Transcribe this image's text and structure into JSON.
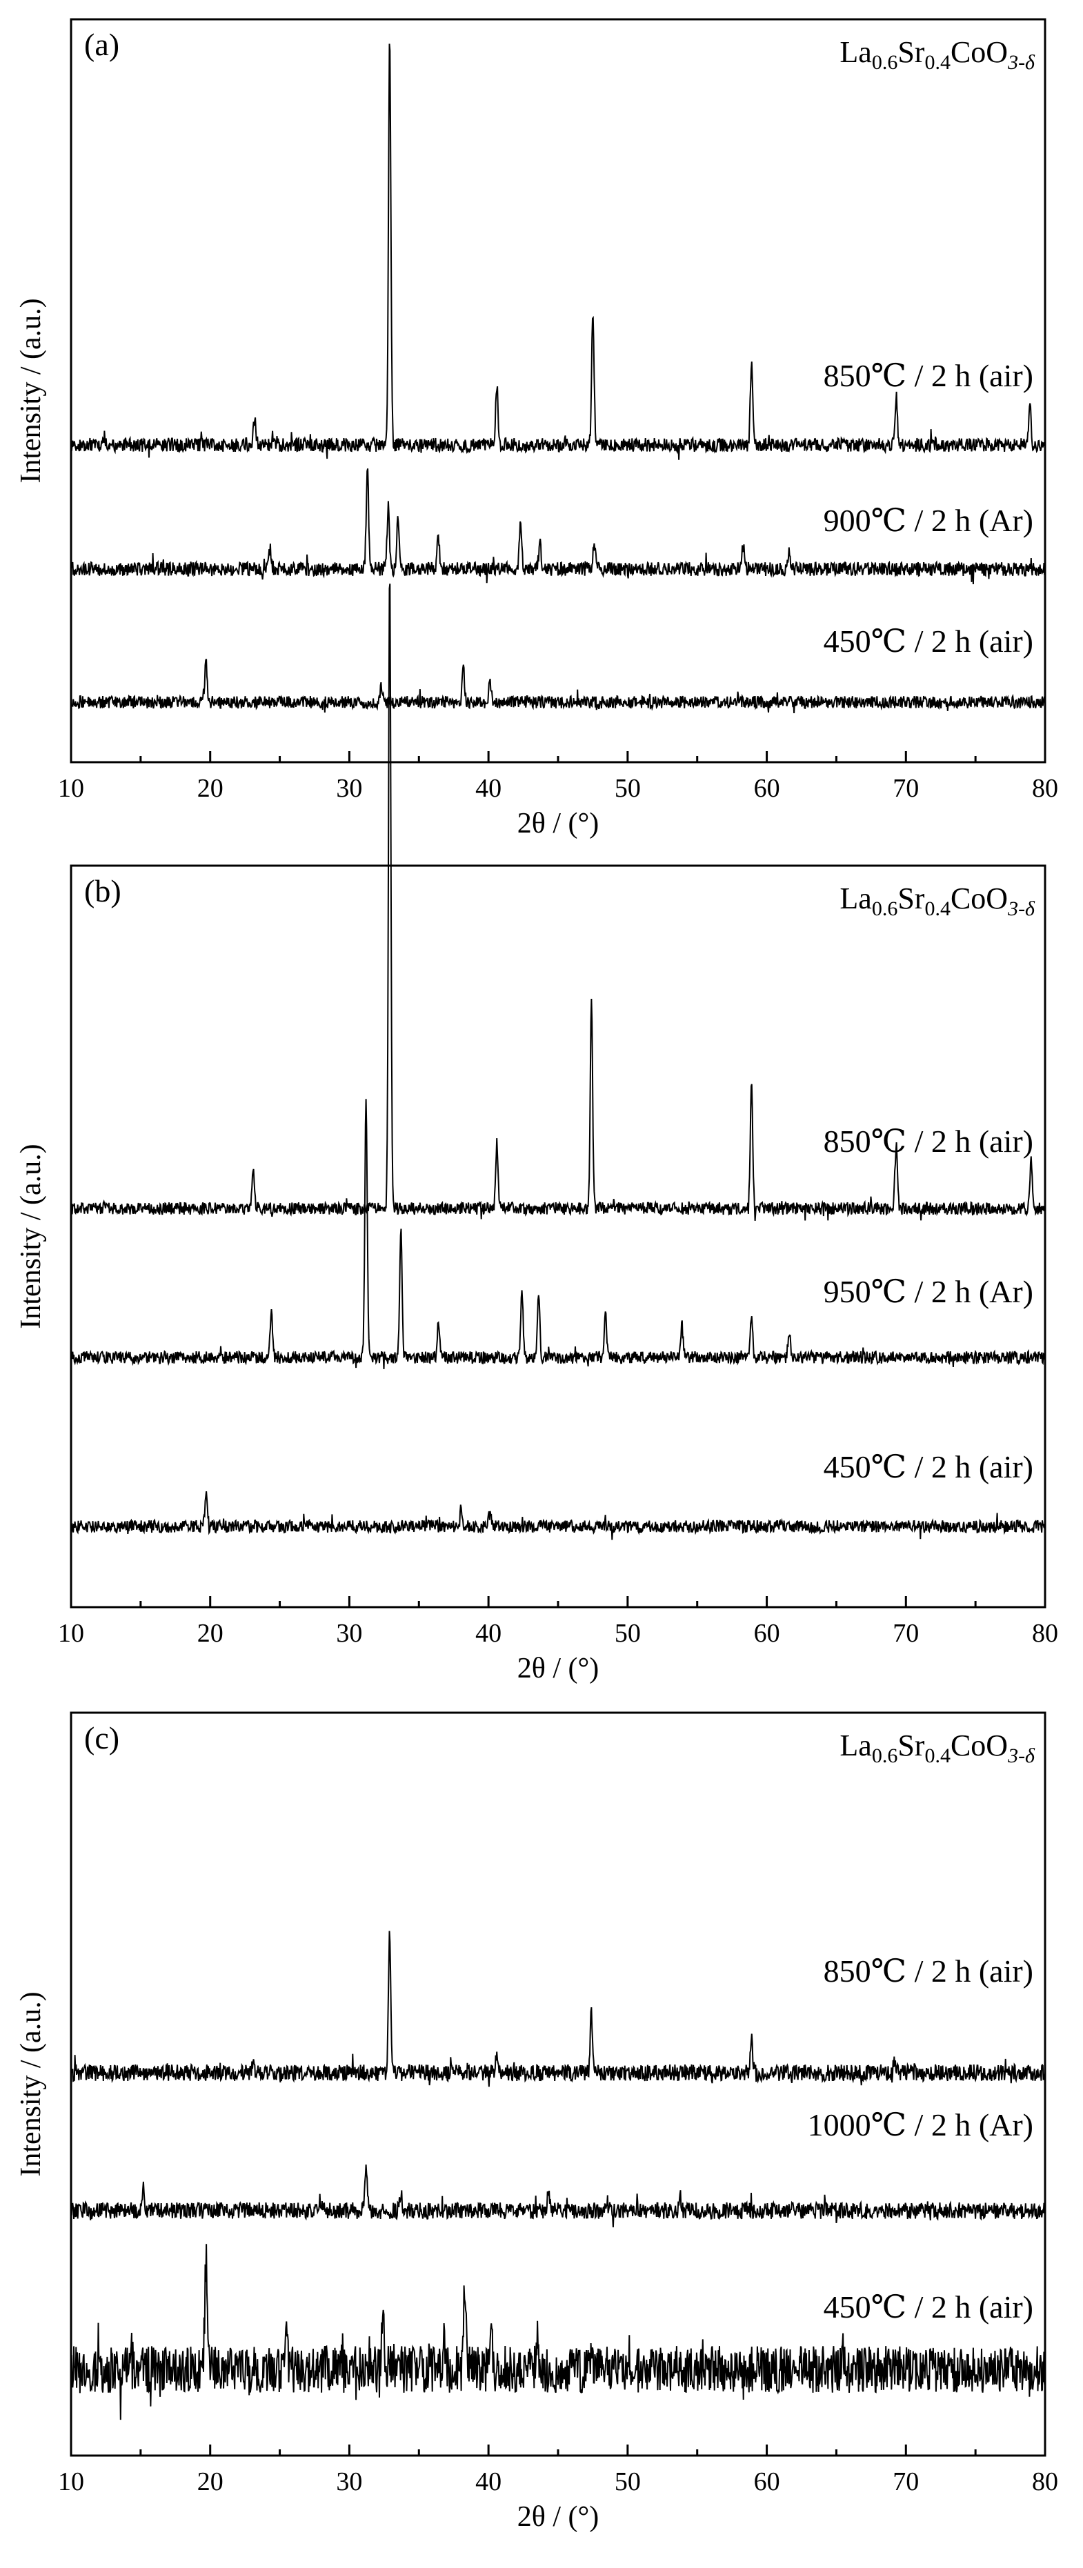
{
  "chart_data": [
    {
      "type": "line",
      "panel_label": "(a)",
      "title": "La0.6Sr0.4CoO3-δ",
      "xlabel": "2θ / (°)",
      "ylabel": "Intensity / (a.u.)",
      "xlim": [
        10,
        80
      ],
      "xticks": [
        "10",
        "20",
        "30",
        "40",
        "50",
        "60",
        "70",
        "80"
      ],
      "yticks": [],
      "series": [
        {
          "name": "850℃ / 2 h (air)",
          "peaks": [
            [
              23.2,
              0.07
            ],
            [
              32.9,
              1.0
            ],
            [
              40.6,
              0.15
            ],
            [
              47.5,
              0.33
            ],
            [
              58.9,
              0.2
            ],
            [
              69.3,
              0.12
            ],
            [
              78.9,
              0.1
            ]
          ]
        },
        {
          "name": "900℃ / 2 h (Ar)",
          "peaks": [
            [
              24.3,
              0.05
            ],
            [
              31.3,
              0.24
            ],
            [
              32.8,
              0.16
            ],
            [
              33.5,
              0.13
            ],
            [
              36.4,
              0.08
            ],
            [
              42.3,
              0.12
            ],
            [
              43.7,
              0.07
            ],
            [
              47.6,
              0.06
            ],
            [
              58.3,
              0.06
            ],
            [
              61.6,
              0.04
            ]
          ]
        },
        {
          "name": "450℃ / 2 h (air)",
          "peaks": [
            [
              19.7,
              0.1
            ],
            [
              32.3,
              0.04
            ],
            [
              38.2,
              0.08
            ],
            [
              40.1,
              0.05
            ]
          ]
        }
      ]
    },
    {
      "type": "line",
      "panel_label": "(b)",
      "title": "La0.6Sr0.4CoO3-δ",
      "xlabel": "2θ / (°)",
      "ylabel": "Intensity / (a.u.)",
      "xlim": [
        10,
        80
      ],
      "xticks": [
        "10",
        "20",
        "30",
        "40",
        "50",
        "60",
        "70",
        "80"
      ],
      "yticks": [],
      "series": [
        {
          "name": "850℃ / 2 h (air)",
          "peaks": [
            [
              23.1,
              0.06
            ],
            [
              32.9,
              1.0
            ],
            [
              40.6,
              0.1
            ],
            [
              47.4,
              0.33
            ],
            [
              58.9,
              0.2
            ],
            [
              69.3,
              0.1
            ],
            [
              79.0,
              0.08
            ]
          ]
        },
        {
          "name": "950℃ / 2 h (Ar)",
          "peaks": [
            [
              24.4,
              0.07
            ],
            [
              31.2,
              0.4
            ],
            [
              33.7,
              0.2
            ],
            [
              36.4,
              0.05
            ],
            [
              42.4,
              0.1
            ],
            [
              43.6,
              0.1
            ],
            [
              48.4,
              0.07
            ],
            [
              53.9,
              0.05
            ],
            [
              58.9,
              0.06
            ],
            [
              61.6,
              0.04
            ]
          ]
        },
        {
          "name": "450℃ / 2 h (air)",
          "peaks": [
            [
              19.7,
              0.05
            ],
            [
              38.0,
              0.03
            ],
            [
              40.1,
              0.02
            ]
          ]
        }
      ]
    },
    {
      "type": "line",
      "panel_label": "(c)",
      "title": "La0.6Sr0.4CoO3-δ",
      "xlabel": "2θ / (°)",
      "ylabel": "Intensity / (a.u.)",
      "xlim": [
        10,
        80
      ],
      "xticks": [
        "10",
        "20",
        "30",
        "40",
        "50",
        "60",
        "70",
        "80"
      ],
      "yticks": [],
      "series": [
        {
          "name": "850℃ / 2 h (air)",
          "peaks": [
            [
              23.1,
              0.05
            ],
            [
              32.9,
              0.52
            ],
            [
              40.6,
              0.06
            ],
            [
              47.4,
              0.22
            ],
            [
              58.9,
              0.12
            ],
            [
              69.2,
              0.05
            ]
          ]
        },
        {
          "name": "1000℃ / 2 h (Ar)",
          "peaks": [
            [
              15.2,
              0.08
            ],
            [
              27.9,
              0.04
            ],
            [
              31.2,
              0.16
            ],
            [
              33.7,
              0.07
            ],
            [
              44.3,
              0.06
            ],
            [
              48.5,
              0.04
            ],
            [
              53.8,
              0.05
            ]
          ]
        },
        {
          "name": "450℃ / 2 h (air)",
          "peaks": [
            [
              19.7,
              0.42
            ],
            [
              25.5,
              0.1
            ],
            [
              32.4,
              0.22
            ],
            [
              36.8,
              0.12
            ],
            [
              38.3,
              0.3
            ],
            [
              40.2,
              0.2
            ],
            [
              43.5,
              0.1
            ],
            [
              47.4,
              0.1
            ],
            [
              65.5,
              0.05
            ]
          ]
        }
      ]
    }
  ]
}
